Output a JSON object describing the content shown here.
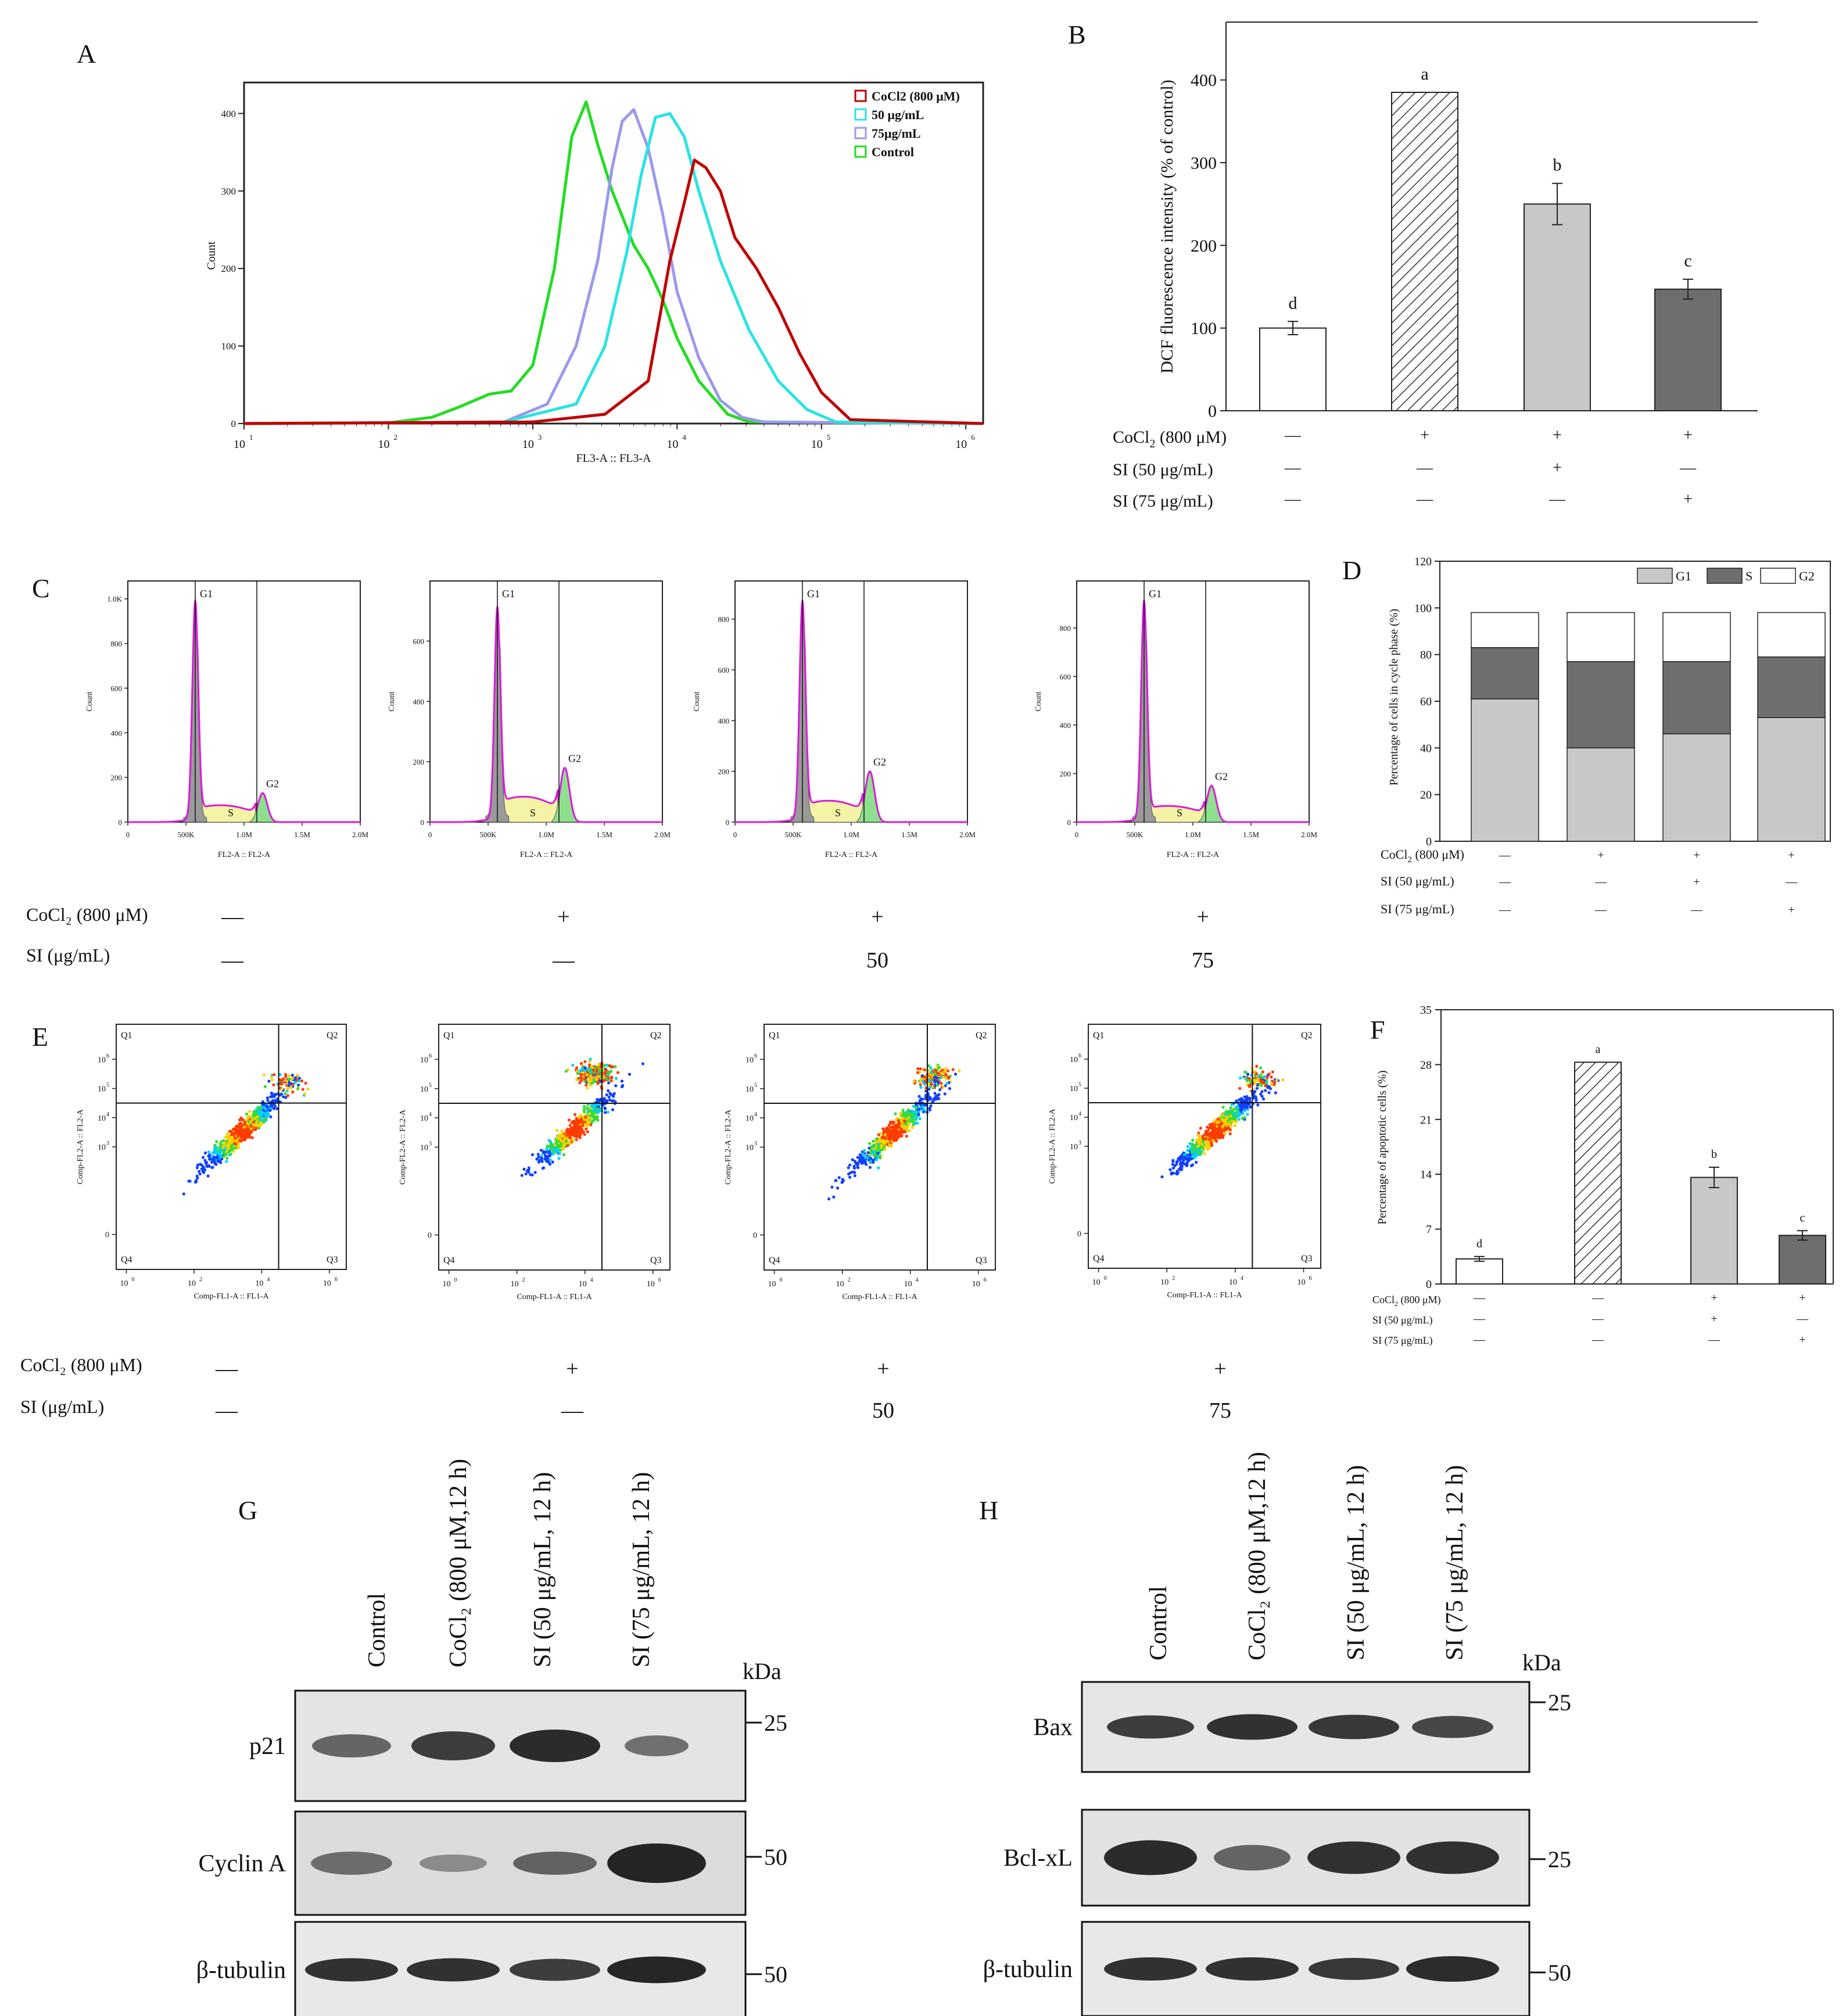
{
  "colors": {
    "cocl2": "#c00000",
    "sl50": "#29e3e3",
    "sl75": "#9b98ee",
    "control": "#22dd22",
    "bar_control": "#ffffff",
    "bar_light": "#c8c8c8",
    "bar_dark": "#6e6e6e",
    "g1": "#c8c8c8",
    "s": "#6e6e6e",
    "g2": "#ffffff"
  },
  "panels": {
    "A": "A",
    "B": "B",
    "C": "C",
    "D": "D",
    "E": "E",
    "F": "F",
    "G": "G",
    "H": "H"
  },
  "panel_a": {
    "xlabel": "FL3-A :: FL3-A",
    "ylabel": "Count",
    "yticks": [
      0,
      100,
      200,
      300,
      400
    ],
    "xticks": [
      "1",
      "2",
      "3",
      "4",
      "5",
      "6"
    ],
    "legend": [
      "CoCl2 (800 μM)",
      "50 μg/mL",
      "75μg/mL",
      "Control"
    ]
  },
  "panel_b_labels": {
    "pm": [
      "—",
      "+",
      "+",
      "+"
    ],
    "sl50": [
      "—",
      "—",
      "+",
      "—"
    ],
    "sl75": [
      "—",
      "—",
      "—",
      "+"
    ]
  },
  "panel_c": {
    "xlabel": "FL2-A :: FL2-A",
    "ylabel": "Count",
    "xticks": [
      "0",
      "500K",
      "1.0M",
      "1.5M",
      "2.0M"
    ],
    "yticks": [
      [
        "0",
        "200",
        "400",
        "600",
        "800",
        "1.0K"
      ],
      [
        "0",
        "200",
        "400",
        "600"
      ],
      [
        "0",
        "200",
        "400",
        "600",
        "800"
      ],
      [
        "0",
        "200",
        "400",
        "600",
        "800"
      ]
    ],
    "g1": "G1",
    "g2": "G2",
    "s": "S",
    "cond_cocl2": "CoCl₂ (800 μM)",
    "cond_sl": "SI (μg/mL)",
    "cocl2_marks": [
      "—",
      "+",
      "+",
      "+"
    ],
    "sl_marks": [
      "—",
      "—",
      "50",
      "75"
    ]
  },
  "panel_e": {
    "xlabel": "Comp-FL1-A :: FL1-A",
    "ylabel": "Comp-FL2-A :: FL2-A",
    "quadrants": [
      "Q1",
      "Q2",
      "Q3",
      "Q4"
    ],
    "cond_cocl2": "CoCl₂ (800 μM)",
    "cond_sl": "SI (μg/mL)",
    "cocl2_marks": [
      "—",
      "+",
      "+",
      "+"
    ],
    "sl_marks": [
      "—",
      "—",
      "50",
      "75"
    ]
  },
  "panel_f_labels": {
    "pm": [
      "—",
      "—",
      "+",
      "+"
    ],
    "sl50": [
      "—",
      "—",
      "+",
      "—"
    ],
    "sl75": [
      "—",
      "—",
      "—",
      "+"
    ]
  },
  "panel_d_labels": {
    "pm": [
      "—",
      "+",
      "+",
      "+"
    ],
    "sl50": [
      "—",
      "—",
      "+",
      "—"
    ],
    "sl75": [
      "—",
      "—",
      "—",
      "+"
    ]
  },
  "panel_g": {
    "lanes": [
      "Control",
      "CoCl₂ (800 μM,12 h)",
      "SI (50 μg/mL, 12 h)",
      "SI (75 μg/mL, 12 h)"
    ],
    "proteins": [
      "p21",
      "Cyclin A",
      "β-tubulin"
    ],
    "kda": "kDa",
    "markers": [
      "25",
      "50",
      "50"
    ]
  },
  "panel_h": {
    "lanes": [
      "Control",
      "CoCl₂ (800 μM,12 h)",
      "SI (50 μg/mL, 12 h)",
      "SI (75 μg/mL, 12 h)"
    ],
    "proteins": [
      "Bax",
      "Bcl-xL",
      "β-tubulin"
    ],
    "kda": "kDa",
    "markers": [
      "25",
      "25",
      "50"
    ]
  },
  "chart_data": [
    {
      "panel": "A",
      "type": "line",
      "title": "",
      "xlabel": "FL3-A :: FL3-A",
      "ylabel": "Count",
      "x_scale": "log10",
      "xlim": [
        10,
        1000000
      ],
      "ylim": [
        0,
        440
      ],
      "series": [
        {
          "name": "CoCl2 (800 μM)",
          "color": "#c00000",
          "x": [
            1,
            3.0,
            3.5,
            3.8,
            3.95,
            4.05,
            4.12,
            4.2,
            4.3,
            4.4,
            4.55,
            4.7,
            4.85,
            5.0,
            5.2,
            6.12
          ],
          "y": [
            0,
            2,
            12,
            55,
            210,
            285,
            340,
            330,
            300,
            240,
            200,
            150,
            90,
            40,
            5,
            0
          ]
        },
        {
          "name": "50 μg/mL",
          "color": "#29e3e3",
          "x": [
            1,
            2.8,
            3.3,
            3.5,
            3.65,
            3.75,
            3.85,
            3.95,
            4.05,
            4.15,
            4.3,
            4.5,
            4.7,
            4.9,
            5.1,
            6.12
          ],
          "y": [
            0,
            2,
            25,
            100,
            220,
            320,
            395,
            400,
            370,
            300,
            210,
            120,
            55,
            18,
            2,
            0
          ]
        },
        {
          "name": "75μg/mL",
          "color": "#9b98ee",
          "x": [
            1,
            2.8,
            3.1,
            3.3,
            3.45,
            3.55,
            3.62,
            3.7,
            3.8,
            3.9,
            4.0,
            4.15,
            4.3,
            4.45,
            4.6,
            6.12
          ],
          "y": [
            0,
            2,
            25,
            100,
            210,
            330,
            390,
            405,
            355,
            270,
            170,
            85,
            30,
            8,
            2,
            0
          ]
        },
        {
          "name": "Control",
          "color": "#22dd22",
          "x": [
            1,
            2.0,
            2.3,
            2.5,
            2.7,
            2.85,
            3.0,
            3.15,
            3.27,
            3.37,
            3.45,
            3.55,
            3.7,
            3.8,
            3.9,
            4.0,
            4.15,
            4.35,
            4.5,
            6.12
          ],
          "y": [
            0,
            1,
            8,
            22,
            38,
            42,
            75,
            200,
            370,
            415,
            360,
            300,
            230,
            200,
            160,
            110,
            55,
            12,
            2,
            0
          ]
        }
      ],
      "legend": "top-right"
    },
    {
      "panel": "B",
      "type": "bar",
      "title": "",
      "ylabel": "DCF fluorescence intensity (% of control)",
      "ylim": [
        0,
        470
      ],
      "yticks": [
        0,
        100,
        200,
        300,
        400
      ],
      "categories": [
        "Control",
        "CoCl2",
        "CoCl2 + SI 50",
        "CoCl2 + SI 75"
      ],
      "values": [
        100,
        385,
        250,
        147
      ],
      "errors": [
        8,
        0,
        25,
        12
      ],
      "letters": [
        "d",
        "a",
        "b",
        "c"
      ],
      "fills": [
        "#ffffff",
        "hatch",
        "#c8c8c8",
        "#6e6e6e"
      ],
      "row_labels": [
        "CoCl₂ (800 μM)",
        "SI (50 μg/mL)",
        "SI (75 μg/mL)"
      ]
    },
    {
      "panel": "C",
      "type": "line",
      "title": "",
      "xlabel": "FL2-A :: FL2-A",
      "ylabel": "Count",
      "series": [
        {
          "name": "Control",
          "ymax": 1000,
          "g1_height": 980,
          "g2_height": 130,
          "s_level": 80
        },
        {
          "name": "CoCl2",
          "ymax": 740,
          "g1_height": 700,
          "g2_height": 180,
          "s_level": 90
        },
        {
          "name": "SI 50",
          "ymax": 880,
          "g1_height": 860,
          "g2_height": 200,
          "s_level": 90
        },
        {
          "name": "SI 75",
          "ymax": 920,
          "g1_height": 900,
          "g2_height": 150,
          "s_level": 70
        }
      ]
    },
    {
      "panel": "D",
      "type": "bar",
      "stacked": true,
      "title": "",
      "ylabel": "Percentage of cells in cycle phase (%)",
      "ylim": [
        0,
        120
      ],
      "yticks": [
        0,
        20,
        40,
        60,
        80,
        100,
        120
      ],
      "categories": [
        "Control",
        "CoCl2",
        "CoCl2 + SI 50",
        "CoCl2 + SI 75"
      ],
      "series": [
        {
          "name": "G1",
          "values": [
            61,
            40,
            46,
            53
          ]
        },
        {
          "name": "S",
          "values": [
            22,
            37,
            31,
            26
          ]
        },
        {
          "name": "G2",
          "values": [
            15,
            21,
            21,
            19
          ]
        }
      ],
      "legend": "top-right",
      "row_labels": [
        "CoCl₂ (800 μM)",
        "SI (50 μg/mL)",
        "SI (75 μg/mL)"
      ]
    },
    {
      "panel": "E",
      "type": "scatter",
      "title": "",
      "xlabel": "Comp-FL1-A :: FL1-A",
      "ylabel": "Comp-FL2-A :: FL2-A",
      "x_scale": "log10",
      "y_scale": "log10",
      "xticks": [
        "10^0",
        "10^2",
        "10^4",
        "10^6"
      ],
      "yticks": [
        "-10^3",
        "0",
        "10^3",
        "10^4",
        "10^5",
        "10^6",
        "10^7"
      ],
      "series": [
        {
          "name": "Control",
          "main_cluster": [
            3.4,
            4.3
          ],
          "upper_cluster": [
            4.8,
            5.2
          ],
          "upper_fraction": 0.08
        },
        {
          "name": "CoCl2",
          "main_cluster": [
            3.7,
            4.4
          ],
          "upper_cluster": [
            4.3,
            5.5
          ],
          "upper_fraction": 0.35
        },
        {
          "name": "SI 50",
          "main_cluster": [
            3.5,
            4.3
          ],
          "upper_cluster": [
            4.7,
            5.4
          ],
          "upper_fraction": 0.2
        },
        {
          "name": "SI 75",
          "main_cluster": [
            3.4,
            4.3
          ],
          "upper_cluster": [
            4.7,
            5.3
          ],
          "upper_fraction": 0.1
        }
      ]
    },
    {
      "panel": "F",
      "type": "bar",
      "title": "",
      "ylabel": "Percentage of apoptotic cells (%)",
      "ylim": [
        0,
        35
      ],
      "yticks": [
        0,
        7,
        14,
        21,
        28,
        35
      ],
      "categories": [
        "Control",
        "CoCl2",
        "CoCl2 + SI 50",
        "CoCl2 + SI 75"
      ],
      "values": [
        3.2,
        28.3,
        13.6,
        6.2
      ],
      "errors": [
        0.3,
        0,
        1.3,
        0.6
      ],
      "letters": [
        "d",
        "a",
        "b",
        "c"
      ],
      "fills": [
        "#ffffff",
        "hatch",
        "#c8c8c8",
        "#6e6e6e"
      ],
      "row_labels": [
        "CoCl₂ (800 μM)",
        "SI (50 μg/mL)",
        "SI (75 μg/mL)"
      ]
    }
  ]
}
